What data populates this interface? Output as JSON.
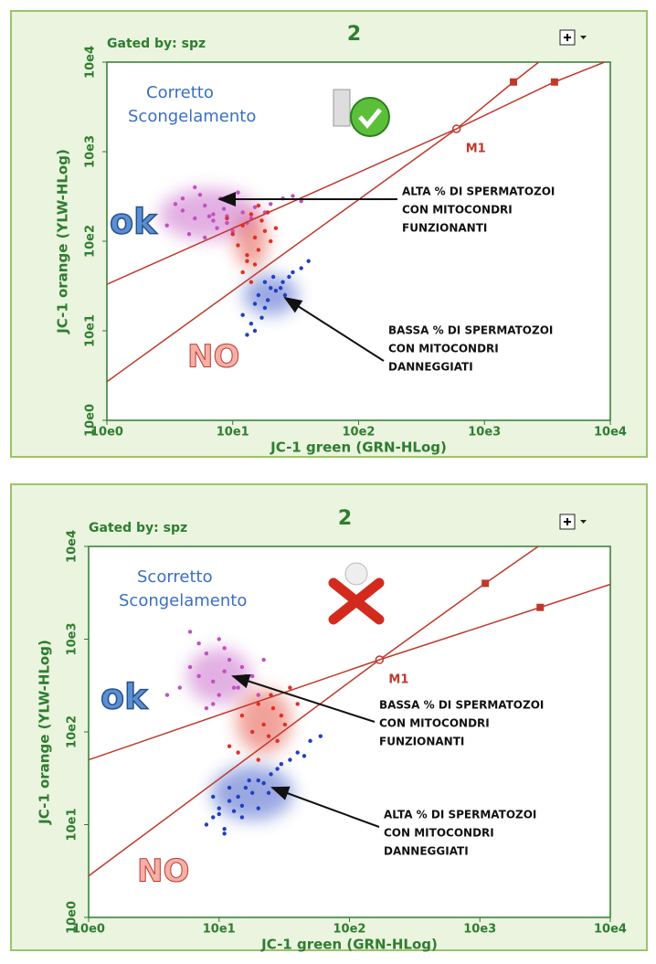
{
  "chart_data": [
    {
      "type": "scatter",
      "title": "2",
      "subtitle": "Gated by: spz",
      "xlabel": "JC-1 green (GRN-HLog)",
      "ylabel": "JC-1 orange (YLW-HLog)",
      "log_scale": true,
      "grid": false,
      "xlim": [
        1,
        10000
      ],
      "ylim": [
        1,
        10000
      ],
      "xticks": [
        {
          "value": 1,
          "label": "10e0"
        },
        {
          "value": 10,
          "label": "10e1"
        },
        {
          "value": 100,
          "label": "10e2"
        },
        {
          "value": 1000,
          "label": "10e3"
        },
        {
          "value": 10000,
          "label": "10e4"
        }
      ],
      "yticks": [
        {
          "value": 1,
          "label": "10e0"
        },
        {
          "value": 10,
          "label": "10e1"
        },
        {
          "value": 100,
          "label": "10e2"
        },
        {
          "value": 1000,
          "label": "10e3"
        },
        {
          "value": 10000,
          "label": "10e4"
        }
      ],
      "series": [
        {
          "color": "#c050c0",
          "x": [
            3,
            4,
            5,
            6,
            7,
            8,
            9,
            10,
            12,
            15,
            4.5,
            5.5,
            6.5,
            7.5,
            3.5,
            8.5,
            11,
            20,
            25,
            30,
            5,
            6,
            7,
            9,
            14,
            18,
            4,
            10,
            13,
            35
          ],
          "values": [
            150,
            220,
            180,
            250,
            200,
            300,
            160,
            280,
            210,
            240,
            120,
            330,
            190,
            140,
            260,
            230,
            350,
            260,
            300,
            320,
            400,
            110,
            170,
            190,
            180,
            210,
            300,
            130,
            160,
            280
          ]
        },
        {
          "color": "#e03020",
          "x": [
            10,
            11,
            12,
            13,
            14,
            15,
            16,
            17,
            18,
            20,
            12,
            14,
            16,
            9,
            22,
            15,
            13,
            19
          ],
          "values": [
            120,
            90,
            150,
            60,
            200,
            110,
            80,
            170,
            130,
            100,
            45,
            35,
            250,
            180,
            140,
            55,
            70,
            210
          ]
        },
        {
          "color": "#2040c0",
          "x": [
            12,
            14,
            15,
            16,
            18,
            20,
            22,
            25,
            28,
            30,
            13,
            17,
            19,
            24,
            35,
            40,
            21,
            26,
            15,
            18
          ],
          "values": [
            15,
            12,
            20,
            25,
            18,
            30,
            28,
            35,
            40,
            45,
            9,
            14,
            22,
            30,
            50,
            60,
            40,
            25,
            10,
            35
          ]
        }
      ],
      "gates": [
        {
          "color": "#c0392b",
          "x": [
            1,
            600,
            1700,
            2700
          ],
          "values": [
            2.7,
            1800,
            6000,
            10000
          ]
        },
        {
          "color": "#c0392b",
          "x": [
            1,
            600,
            3600,
            9000
          ],
          "values": [
            33,
            1800,
            6000,
            10000
          ]
        }
      ],
      "gate_label": "M1",
      "heading": [
        "Corretto",
        "Scongelamento"
      ],
      "ok_label": "ok",
      "no_label": "NO",
      "callouts": [
        [
          "ALTA  % DI SPERMATOZOI",
          "CON          MITOCONDRI",
          "FUNZIONANTI"
        ],
        [
          "BASSA % DI SPERMATOZOI",
          "CON          MITOCONDRI",
          "DANNEGGIATI"
        ]
      ]
    },
    {
      "type": "scatter",
      "title": "2",
      "subtitle": "Gated by: spz",
      "xlabel": "JC-1 green (GRN-HLog)",
      "ylabel": "JC-1 orange (YLW-HLog)",
      "log_scale": true,
      "grid": false,
      "xlim": [
        1,
        10000
      ],
      "ylim": [
        1,
        10000
      ],
      "xticks": [
        {
          "value": 1,
          "label": "10e0"
        },
        {
          "value": 10,
          "label": "10e1"
        },
        {
          "value": 100,
          "label": "10e2"
        },
        {
          "value": 1000,
          "label": "10e3"
        },
        {
          "value": 10000,
          "label": "10e4"
        }
      ],
      "yticks": [
        {
          "value": 1,
          "label": "10e0"
        },
        {
          "value": 10,
          "label": "10e1"
        },
        {
          "value": 100,
          "label": "10e2"
        },
        {
          "value": 1000,
          "label": "10e3"
        },
        {
          "value": 10000,
          "label": "10e4"
        }
      ],
      "series": [
        {
          "color": "#c050c0",
          "x": [
            5,
            6,
            7,
            8,
            9,
            10,
            11,
            12,
            14,
            16,
            18,
            20,
            7,
            9,
            11,
            13,
            6,
            8,
            10,
            15,
            4,
            22
          ],
          "values": [
            300,
            500,
            400,
            700,
            350,
            250,
            450,
            600,
            300,
            350,
            400,
            250,
            900,
            200,
            800,
            300,
            1200,
            180,
            1000,
            500,
            250,
            600
          ]
        },
        {
          "color": "#e03020",
          "x": [
            15,
            18,
            20,
            22,
            25,
            28,
            30,
            35,
            12,
            14,
            40,
            16,
            24,
            26,
            32,
            20
          ],
          "values": [
            150,
            100,
            200,
            120,
            250,
            80,
            150,
            300,
            70,
            60,
            200,
            400,
            90,
            180,
            120,
            50
          ]
        },
        {
          "color": "#2040c0",
          "x": [
            8,
            9,
            10,
            11,
            12,
            13,
            14,
            15,
            16,
            18,
            20,
            22,
            25,
            28,
            30,
            35,
            40,
            45,
            50,
            9,
            12,
            15,
            20,
            60,
            11,
            17,
            24,
            10
          ],
          "values": [
            10,
            12,
            15,
            9,
            18,
            14,
            20,
            16,
            25,
            22,
            30,
            28,
            35,
            40,
            45,
            50,
            60,
            55,
            80,
            20,
            25,
            12,
            15,
            90,
            8,
            30,
            22,
            13
          ]
        }
      ],
      "gates": [
        {
          "color": "#c0392b",
          "x": [
            1,
            170,
            1100,
            2800
          ],
          "values": [
            2.8,
            600,
            4000,
            10000
          ]
        },
        {
          "color": "#c0392b",
          "x": [
            1,
            170,
            2900,
            10000
          ],
          "values": [
            50,
            600,
            2200,
            3900
          ]
        }
      ],
      "gate_label": "M1",
      "heading": [
        "Scorretto",
        "Scongelamento"
      ],
      "ok_label": "ok",
      "no_label": "NO",
      "callouts": [
        [
          "BASSA % DI SPERMATOZOI",
          "CON          MITOCONDRI",
          "FUNZIONANTI"
        ],
        [
          "ALTA  % DI SPERMATOZOI",
          "CON          MITOCONDRI",
          "DANNEGGIATI"
        ]
      ]
    }
  ]
}
